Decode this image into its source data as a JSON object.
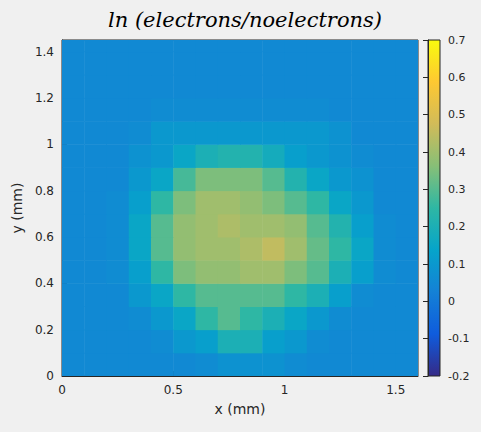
{
  "chart_data": {
    "type": "heatmap",
    "title": "ln (electrons/noelectrons)",
    "x_label": "x (mm)",
    "y_label": "y (mm)",
    "xlim": [
      0,
      1.6
    ],
    "ylim": [
      0,
      1.45
    ],
    "xticks": [
      0,
      0.5,
      1,
      1.5
    ],
    "yticks": [
      0,
      0.2,
      0.4,
      0.6,
      0.8,
      1,
      1.2,
      1.4
    ],
    "grid": false,
    "colorbar": {
      "range": [
        -0.2,
        0.7
      ],
      "ticks": [
        -0.2,
        -0.1,
        0,
        0.1,
        0.2,
        0.3,
        0.4,
        0.5,
        0.6,
        0.7
      ]
    },
    "x": [
      0.05,
      0.15,
      0.25,
      0.35,
      0.45,
      0.55,
      0.65,
      0.75,
      0.85,
      0.95,
      1.05,
      1.15,
      1.25,
      1.35,
      1.45,
      1.55
    ],
    "y": [
      0.05,
      0.15,
      0.25,
      0.35,
      0.45,
      0.55,
      0.65,
      0.75,
      0.85,
      0.95,
      1.05,
      1.15,
      1.25,
      1.35,
      1.45
    ],
    "cells": [
      [
        0.05,
        0.05,
        0.05,
        0.05,
        0.05,
        0.05,
        0.06,
        0.08,
        0.08,
        0.08,
        0.06,
        0.05,
        0.05,
        0.05,
        0.05,
        0.05
      ],
      [
        0.05,
        0.05,
        0.05,
        0.05,
        0.06,
        0.1,
        0.12,
        0.2,
        0.2,
        0.12,
        0.1,
        0.06,
        0.05,
        0.05,
        0.05,
        0.05
      ],
      [
        0.05,
        0.05,
        0.05,
        0.06,
        0.1,
        0.15,
        0.25,
        0.3,
        0.25,
        0.2,
        0.15,
        0.1,
        0.06,
        0.05,
        0.05,
        0.05
      ],
      [
        0.05,
        0.05,
        0.05,
        0.1,
        0.15,
        0.25,
        0.3,
        0.3,
        0.3,
        0.3,
        0.25,
        0.2,
        0.12,
        0.06,
        0.05,
        0.05
      ],
      [
        0.05,
        0.05,
        0.06,
        0.12,
        0.25,
        0.35,
        0.38,
        0.38,
        0.4,
        0.4,
        0.35,
        0.3,
        0.2,
        0.12,
        0.06,
        0.05
      ],
      [
        0.05,
        0.05,
        0.06,
        0.15,
        0.3,
        0.38,
        0.4,
        0.4,
        0.42,
        0.45,
        0.4,
        0.32,
        0.25,
        0.15,
        0.06,
        0.05
      ],
      [
        0.05,
        0.05,
        0.06,
        0.15,
        0.3,
        0.38,
        0.4,
        0.42,
        0.4,
        0.4,
        0.38,
        0.3,
        0.22,
        0.12,
        0.06,
        0.05
      ],
      [
        0.05,
        0.05,
        0.06,
        0.12,
        0.25,
        0.35,
        0.4,
        0.4,
        0.38,
        0.35,
        0.3,
        0.25,
        0.15,
        0.1,
        0.05,
        0.05
      ],
      [
        0.05,
        0.05,
        0.05,
        0.1,
        0.15,
        0.28,
        0.35,
        0.35,
        0.35,
        0.3,
        0.22,
        0.15,
        0.1,
        0.08,
        0.05,
        0.05
      ],
      [
        0.05,
        0.05,
        0.05,
        0.08,
        0.1,
        0.15,
        0.2,
        0.22,
        0.22,
        0.18,
        0.12,
        0.1,
        0.08,
        0.06,
        0.05,
        0.05
      ],
      [
        0.05,
        0.05,
        0.05,
        0.06,
        0.1,
        0.1,
        0.1,
        0.1,
        0.1,
        0.1,
        0.1,
        0.1,
        0.08,
        0.05,
        0.05,
        0.05
      ],
      [
        0.05,
        0.05,
        0.05,
        0.05,
        0.06,
        0.06,
        0.06,
        0.06,
        0.06,
        0.06,
        0.06,
        0.06,
        0.05,
        0.05,
        0.05,
        0.05
      ],
      [
        0.05,
        0.05,
        0.05,
        0.05,
        0.05,
        0.05,
        0.05,
        0.05,
        0.05,
        0.05,
        0.05,
        0.05,
        0.05,
        0.05,
        0.05,
        0.05
      ],
      [
        0.05,
        0.05,
        0.05,
        0.05,
        0.05,
        0.05,
        0.05,
        0.05,
        0.05,
        0.05,
        0.05,
        0.05,
        0.05,
        0.05,
        0.05,
        0.05
      ],
      [
        0.05,
        0.05,
        0.05,
        0.05,
        0.05,
        0.05,
        0.05,
        0.05,
        0.05,
        0.05,
        0.05,
        0.05,
        0.05,
        0.05,
        0.05,
        0.05
      ]
    ]
  }
}
